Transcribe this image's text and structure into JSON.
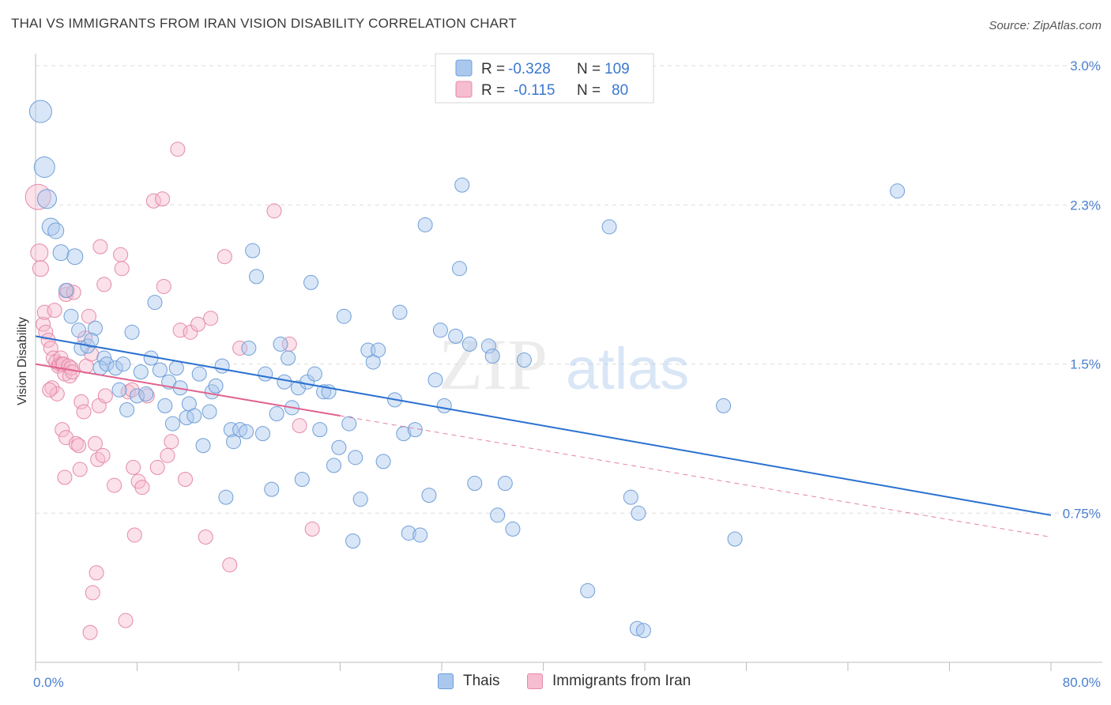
{
  "title": "THAI VS IMMIGRANTS FROM IRAN VISION DISABILITY CORRELATION CHART",
  "source": "Source: ZipAtlas.com",
  "watermark": {
    "part1": "ZIP",
    "part2": "atlas"
  },
  "stats_legend": {
    "rows": [
      {
        "r_label": "R =",
        "r_value": "-0.328",
        "n_label": "N =",
        "n_value": "109"
      },
      {
        "r_label": "R =",
        "r_value": "-0.115",
        "n_label": "N =",
        "n_value": "80"
      }
    ]
  },
  "colors": {
    "thais_fill": "#aac8ee",
    "thais_stroke": "#6f9fd8",
    "thais_line": "#2a70d0",
    "iran_fill": "#f6bccf",
    "iran_stroke": "#e58aa9",
    "iran_line": "#e0628e",
    "axis_text": "#4a7fcf",
    "grid": "#dddddd"
  },
  "chart_data": {
    "type": "scatter",
    "title": "THAI VS IMMIGRANTS FROM IRAN VISION DISABILITY CORRELATION CHART",
    "xlabel": "",
    "ylabel": "Vision Disability",
    "xlim": [
      0,
      80
    ],
    "ylim": [
      0,
      3.1
    ],
    "x_tick_labels": [
      {
        "value": 0,
        "label": "0.0%"
      },
      {
        "value": 80,
        "label": "80.0%"
      }
    ],
    "y_tick_labels": [
      {
        "value": 0.75,
        "label": "0.75%"
      },
      {
        "value": 1.5,
        "label": "1.5%"
      },
      {
        "value": 2.3,
        "label": "2.3%"
      },
      {
        "value": 3.0,
        "label": "3.0%"
      }
    ],
    "y_gridlines": [
      0.75,
      1.5,
      2.3,
      3.0
    ],
    "legend": [
      "Thais",
      "Immigrants from Iran"
    ],
    "series": [
      {
        "name": "Thais",
        "R": -0.328,
        "N": 109,
        "trend": {
          "x": [
            0,
            80
          ],
          "y": [
            1.64,
            0.74
          ],
          "dashed_extension": false
        },
        "points": [
          {
            "x": 0.4,
            "y": 2.77,
            "size": 14
          },
          {
            "x": 0.7,
            "y": 2.49,
            "size": 13
          },
          {
            "x": 0.9,
            "y": 2.33,
            "size": 12
          },
          {
            "x": 1.2,
            "y": 2.19,
            "size": 11
          },
          {
            "x": 1.6,
            "y": 2.17,
            "size": 10
          },
          {
            "x": 2.0,
            "y": 2.06,
            "size": 10
          },
          {
            "x": 3.1,
            "y": 2.04,
            "size": 10
          },
          {
            "x": 2.4,
            "y": 1.87,
            "size": 9
          },
          {
            "x": 2.8,
            "y": 1.74,
            "size": 9
          },
          {
            "x": 3.4,
            "y": 1.67,
            "size": 9
          },
          {
            "x": 4.7,
            "y": 1.68,
            "size": 9
          },
          {
            "x": 3.6,
            "y": 1.58,
            "size": 9
          },
          {
            "x": 4.1,
            "y": 1.59,
            "size": 9
          },
          {
            "x": 4.4,
            "y": 1.62,
            "size": 9
          },
          {
            "x": 5.4,
            "y": 1.53,
            "size": 9
          },
          {
            "x": 5.1,
            "y": 1.48,
            "size": 9
          },
          {
            "x": 5.6,
            "y": 1.5,
            "size": 9
          },
          {
            "x": 6.3,
            "y": 1.48,
            "size": 9
          },
          {
            "x": 6.6,
            "y": 1.37,
            "size": 9
          },
          {
            "x": 6.9,
            "y": 1.5,
            "size": 9
          },
          {
            "x": 7.2,
            "y": 1.27,
            "size": 9
          },
          {
            "x": 7.6,
            "y": 1.66,
            "size": 9
          },
          {
            "x": 8.0,
            "y": 1.34,
            "size": 9
          },
          {
            "x": 8.3,
            "y": 1.46,
            "size": 9
          },
          {
            "x": 8.7,
            "y": 1.35,
            "size": 9
          },
          {
            "x": 9.1,
            "y": 1.53,
            "size": 9
          },
          {
            "x": 9.4,
            "y": 1.81,
            "size": 9
          },
          {
            "x": 9.8,
            "y": 1.47,
            "size": 9
          },
          {
            "x": 10.2,
            "y": 1.29,
            "size": 9
          },
          {
            "x": 10.5,
            "y": 1.41,
            "size": 9
          },
          {
            "x": 10.8,
            "y": 1.2,
            "size": 9
          },
          {
            "x": 11.1,
            "y": 1.48,
            "size": 9
          },
          {
            "x": 11.4,
            "y": 1.38,
            "size": 9
          },
          {
            "x": 11.9,
            "y": 1.23,
            "size": 9
          },
          {
            "x": 12.1,
            "y": 1.3,
            "size": 9
          },
          {
            "x": 12.5,
            "y": 1.24,
            "size": 9
          },
          {
            "x": 12.9,
            "y": 1.45,
            "size": 9
          },
          {
            "x": 13.2,
            "y": 1.09,
            "size": 9
          },
          {
            "x": 13.7,
            "y": 1.26,
            "size": 9
          },
          {
            "x": 13.9,
            "y": 1.36,
            "size": 9
          },
          {
            "x": 14.2,
            "y": 1.39,
            "size": 9
          },
          {
            "x": 14.7,
            "y": 1.49,
            "size": 9
          },
          {
            "x": 15.0,
            "y": 0.83,
            "size": 9
          },
          {
            "x": 15.4,
            "y": 1.17,
            "size": 9
          },
          {
            "x": 15.6,
            "y": 1.11,
            "size": 9
          },
          {
            "x": 16.1,
            "y": 1.17,
            "size": 9
          },
          {
            "x": 16.6,
            "y": 1.16,
            "size": 9
          },
          {
            "x": 16.8,
            "y": 1.58,
            "size": 9
          },
          {
            "x": 17.1,
            "y": 2.07,
            "size": 9
          },
          {
            "x": 17.4,
            "y": 1.94,
            "size": 9
          },
          {
            "x": 17.9,
            "y": 1.15,
            "size": 9
          },
          {
            "x": 18.1,
            "y": 1.45,
            "size": 9
          },
          {
            "x": 18.6,
            "y": 0.87,
            "size": 9
          },
          {
            "x": 19.0,
            "y": 1.25,
            "size": 9
          },
          {
            "x": 19.3,
            "y": 1.6,
            "size": 9
          },
          {
            "x": 19.6,
            "y": 1.41,
            "size": 9
          },
          {
            "x": 19.9,
            "y": 1.53,
            "size": 9
          },
          {
            "x": 20.2,
            "y": 1.28,
            "size": 9
          },
          {
            "x": 20.7,
            "y": 1.38,
            "size": 9
          },
          {
            "x": 21.0,
            "y": 0.92,
            "size": 9
          },
          {
            "x": 21.4,
            "y": 1.41,
            "size": 9
          },
          {
            "x": 21.7,
            "y": 1.91,
            "size": 9
          },
          {
            "x": 22.0,
            "y": 1.45,
            "size": 9
          },
          {
            "x": 22.4,
            "y": 1.17,
            "size": 9
          },
          {
            "x": 22.7,
            "y": 1.36,
            "size": 9
          },
          {
            "x": 23.1,
            "y": 1.36,
            "size": 9
          },
          {
            "x": 23.5,
            "y": 0.99,
            "size": 9
          },
          {
            "x": 23.9,
            "y": 1.08,
            "size": 9
          },
          {
            "x": 24.3,
            "y": 1.74,
            "size": 9
          },
          {
            "x": 24.7,
            "y": 1.2,
            "size": 9
          },
          {
            "x": 25.0,
            "y": 0.61,
            "size": 9
          },
          {
            "x": 25.2,
            "y": 1.03,
            "size": 9
          },
          {
            "x": 25.6,
            "y": 0.82,
            "size": 9
          },
          {
            "x": 26.2,
            "y": 1.57,
            "size": 9
          },
          {
            "x": 26.6,
            "y": 1.51,
            "size": 9
          },
          {
            "x": 27.0,
            "y": 1.57,
            "size": 9
          },
          {
            "x": 27.4,
            "y": 1.01,
            "size": 9
          },
          {
            "x": 28.3,
            "y": 1.32,
            "size": 9
          },
          {
            "x": 28.7,
            "y": 1.76,
            "size": 9
          },
          {
            "x": 29.0,
            "y": 1.15,
            "size": 9
          },
          {
            "x": 29.4,
            "y": 0.65,
            "size": 9
          },
          {
            "x": 29.9,
            "y": 1.17,
            "size": 9
          },
          {
            "x": 30.3,
            "y": 0.64,
            "size": 9
          },
          {
            "x": 30.7,
            "y": 2.2,
            "size": 9
          },
          {
            "x": 31.0,
            "y": 0.84,
            "size": 9
          },
          {
            "x": 31.5,
            "y": 1.42,
            "size": 9
          },
          {
            "x": 31.9,
            "y": 1.67,
            "size": 9
          },
          {
            "x": 32.2,
            "y": 1.29,
            "size": 9
          },
          {
            "x": 33.1,
            "y": 1.64,
            "size": 9
          },
          {
            "x": 33.4,
            "y": 1.98,
            "size": 9
          },
          {
            "x": 33.6,
            "y": 2.4,
            "size": 9
          },
          {
            "x": 34.2,
            "y": 1.6,
            "size": 9
          },
          {
            "x": 34.6,
            "y": 0.9,
            "size": 9
          },
          {
            "x": 35.7,
            "y": 1.59,
            "size": 9
          },
          {
            "x": 36.0,
            "y": 1.54,
            "size": 9
          },
          {
            "x": 36.4,
            "y": 0.74,
            "size": 9
          },
          {
            "x": 37.0,
            "y": 0.9,
            "size": 9
          },
          {
            "x": 37.6,
            "y": 0.67,
            "size": 9
          },
          {
            "x": 38.5,
            "y": 1.52,
            "size": 9
          },
          {
            "x": 43.5,
            "y": 0.36,
            "size": 9
          },
          {
            "x": 45.2,
            "y": 2.19,
            "size": 9
          },
          {
            "x": 46.9,
            "y": 0.83,
            "size": 9
          },
          {
            "x": 47.4,
            "y": 0.17,
            "size": 9
          },
          {
            "x": 47.5,
            "y": 0.75,
            "size": 9
          },
          {
            "x": 47.9,
            "y": 0.16,
            "size": 9
          },
          {
            "x": 54.2,
            "y": 1.29,
            "size": 9
          },
          {
            "x": 55.1,
            "y": 0.62,
            "size": 9
          },
          {
            "x": 67.9,
            "y": 2.37,
            "size": 9
          }
        ]
      },
      {
        "name": "Immigrants from Iran",
        "R": -0.115,
        "N": 80,
        "trend": {
          "x": [
            0,
            24
          ],
          "y": [
            1.5,
            1.24
          ],
          "dashed_extension": {
            "x": [
              24,
              80
            ],
            "y": [
              1.24,
              0.63
            ]
          }
        },
        "points": [
          {
            "x": 0.2,
            "y": 2.34,
            "size": 16
          },
          {
            "x": 0.3,
            "y": 2.06,
            "size": 11
          },
          {
            "x": 0.4,
            "y": 1.98,
            "size": 10
          },
          {
            "x": 0.6,
            "y": 1.7,
            "size": 9
          },
          {
            "x": 0.8,
            "y": 1.66,
            "size": 9
          },
          {
            "x": 1.0,
            "y": 1.62,
            "size": 9
          },
          {
            "x": 1.2,
            "y": 1.58,
            "size": 9
          },
          {
            "x": 1.4,
            "y": 1.53,
            "size": 9
          },
          {
            "x": 1.6,
            "y": 1.51,
            "size": 9
          },
          {
            "x": 0.7,
            "y": 1.76,
            "size": 9
          },
          {
            "x": 1.5,
            "y": 1.77,
            "size": 9
          },
          {
            "x": 1.8,
            "y": 1.49,
            "size": 9
          },
          {
            "x": 1.9,
            "y": 1.5,
            "size": 9
          },
          {
            "x": 2.0,
            "y": 1.53,
            "size": 9
          },
          {
            "x": 2.1,
            "y": 1.5,
            "size": 9
          },
          {
            "x": 2.2,
            "y": 1.5,
            "size": 9
          },
          {
            "x": 2.3,
            "y": 1.45,
            "size": 9
          },
          {
            "x": 2.4,
            "y": 1.85,
            "size": 9
          },
          {
            "x": 2.5,
            "y": 1.87,
            "size": 9
          },
          {
            "x": 2.6,
            "y": 1.49,
            "size": 9
          },
          {
            "x": 2.7,
            "y": 1.44,
            "size": 9
          },
          {
            "x": 2.8,
            "y": 1.48,
            "size": 9
          },
          {
            "x": 2.9,
            "y": 1.46,
            "size": 9
          },
          {
            "x": 3.0,
            "y": 1.86,
            "size": 9
          },
          {
            "x": 1.3,
            "y": 1.38,
            "size": 9
          },
          {
            "x": 1.7,
            "y": 1.35,
            "size": 9
          },
          {
            "x": 2.1,
            "y": 1.17,
            "size": 9
          },
          {
            "x": 2.4,
            "y": 1.13,
            "size": 9
          },
          {
            "x": 3.2,
            "y": 1.1,
            "size": 9
          },
          {
            "x": 3.5,
            "y": 0.97,
            "size": 9
          },
          {
            "x": 3.6,
            "y": 1.31,
            "size": 9
          },
          {
            "x": 3.8,
            "y": 1.26,
            "size": 9
          },
          {
            "x": 3.9,
            "y": 1.63,
            "size": 9
          },
          {
            "x": 4.0,
            "y": 1.49,
            "size": 9
          },
          {
            "x": 2.3,
            "y": 0.93,
            "size": 9
          },
          {
            "x": 4.2,
            "y": 1.74,
            "size": 9
          },
          {
            "x": 4.4,
            "y": 1.55,
            "size": 9
          },
          {
            "x": 4.5,
            "y": 0.35,
            "size": 9
          },
          {
            "x": 4.3,
            "y": 0.15,
            "size": 9
          },
          {
            "x": 4.7,
            "y": 1.1,
            "size": 9
          },
          {
            "x": 4.8,
            "y": 0.45,
            "size": 9
          },
          {
            "x": 4.9,
            "y": 1.02,
            "size": 9
          },
          {
            "x": 5.0,
            "y": 1.29,
            "size": 9
          },
          {
            "x": 5.1,
            "y": 2.09,
            "size": 9
          },
          {
            "x": 5.3,
            "y": 1.04,
            "size": 9
          },
          {
            "x": 5.4,
            "y": 1.9,
            "size": 9
          },
          {
            "x": 5.5,
            "y": 1.34,
            "size": 9
          },
          {
            "x": 6.2,
            "y": 0.89,
            "size": 9
          },
          {
            "x": 6.7,
            "y": 2.05,
            "size": 9
          },
          {
            "x": 6.8,
            "y": 1.98,
            "size": 9
          },
          {
            "x": 7.1,
            "y": 0.21,
            "size": 9
          },
          {
            "x": 7.3,
            "y": 1.36,
            "size": 9
          },
          {
            "x": 7.6,
            "y": 1.37,
            "size": 9
          },
          {
            "x": 7.7,
            "y": 0.98,
            "size": 9
          },
          {
            "x": 7.8,
            "y": 0.64,
            "size": 9
          },
          {
            "x": 8.1,
            "y": 0.91,
            "size": 9
          },
          {
            "x": 8.4,
            "y": 0.88,
            "size": 9
          },
          {
            "x": 8.8,
            "y": 1.34,
            "size": 9
          },
          {
            "x": 9.3,
            "y": 2.32,
            "size": 9
          },
          {
            "x": 9.6,
            "y": 0.98,
            "size": 9
          },
          {
            "x": 10.0,
            "y": 2.33,
            "size": 9
          },
          {
            "x": 10.1,
            "y": 1.89,
            "size": 9
          },
          {
            "x": 10.4,
            "y": 1.04,
            "size": 9
          },
          {
            "x": 10.7,
            "y": 1.11,
            "size": 9
          },
          {
            "x": 11.2,
            "y": 2.58,
            "size": 9
          },
          {
            "x": 11.4,
            "y": 1.67,
            "size": 9
          },
          {
            "x": 11.8,
            "y": 0.92,
            "size": 9
          },
          {
            "x": 12.2,
            "y": 1.66,
            "size": 9
          },
          {
            "x": 12.8,
            "y": 1.7,
            "size": 9
          },
          {
            "x": 13.4,
            "y": 0.63,
            "size": 9
          },
          {
            "x": 13.8,
            "y": 1.73,
            "size": 9
          },
          {
            "x": 14.9,
            "y": 2.04,
            "size": 9
          },
          {
            "x": 15.3,
            "y": 0.49,
            "size": 9
          },
          {
            "x": 16.1,
            "y": 1.58,
            "size": 9
          },
          {
            "x": 18.8,
            "y": 2.27,
            "size": 9
          },
          {
            "x": 20.0,
            "y": 1.6,
            "size": 9
          },
          {
            "x": 20.8,
            "y": 1.19,
            "size": 9
          },
          {
            "x": 21.8,
            "y": 0.67,
            "size": 9
          },
          {
            "x": 1.1,
            "y": 1.37,
            "size": 9
          },
          {
            "x": 3.4,
            "y": 1.09,
            "size": 9
          }
        ]
      }
    ]
  },
  "bottom_legend": [
    {
      "label": "Thais"
    },
    {
      "label": "Immigrants from Iran"
    }
  ]
}
